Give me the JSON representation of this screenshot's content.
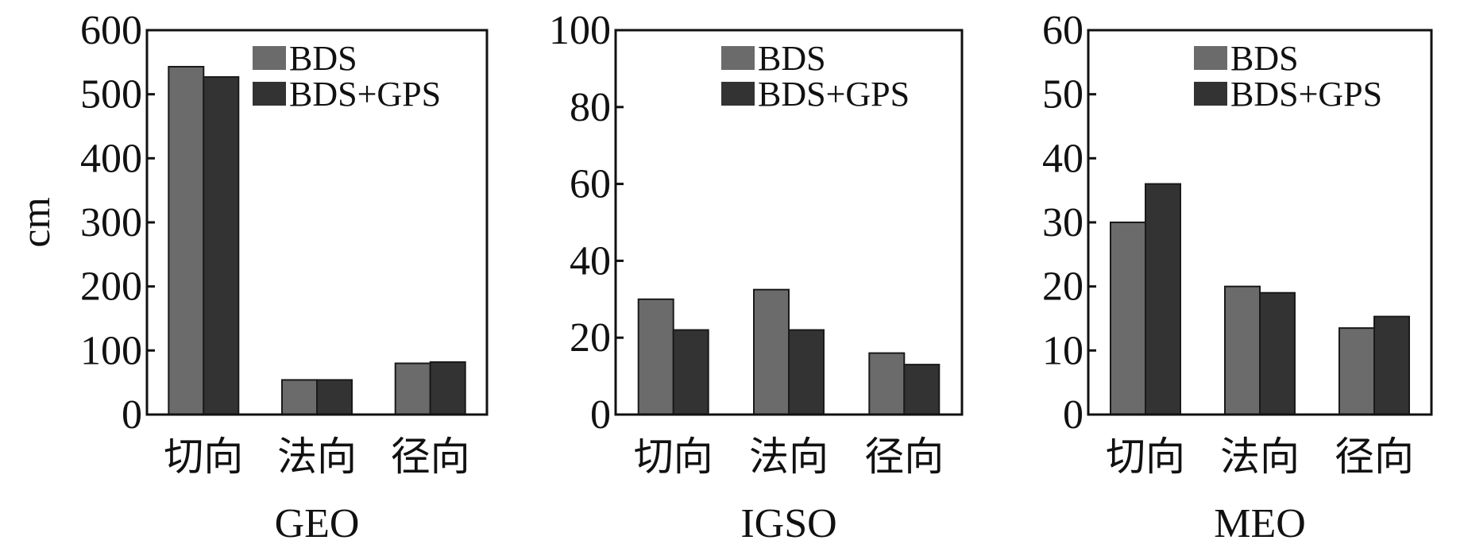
{
  "chart_data": [
    {
      "type": "bar",
      "title": "GEO",
      "ylabel": "cm",
      "categories": [
        "切向",
        "法向",
        "径向"
      ],
      "ylim": [
        0,
        600
      ],
      "yticks": [
        0,
        100,
        200,
        300,
        400,
        500,
        600
      ],
      "legend_position": "top-right",
      "grid": false,
      "series": [
        {
          "name": "BDS",
          "values": [
            543,
            54,
            80
          ],
          "color": "#6b6b6b"
        },
        {
          "name": "BDS+GPS",
          "values": [
            527,
            54,
            82
          ],
          "color": "#333333"
        }
      ]
    },
    {
      "type": "bar",
      "title": "IGSO",
      "ylabel": "",
      "categories": [
        "切向",
        "法向",
        "径向"
      ],
      "ylim": [
        0,
        100
      ],
      "yticks": [
        0,
        20,
        40,
        60,
        80,
        100
      ],
      "legend_position": "top-right",
      "grid": false,
      "series": [
        {
          "name": "BDS",
          "values": [
            30,
            32.5,
            16
          ],
          "color": "#6b6b6b"
        },
        {
          "name": "BDS+GPS",
          "values": [
            22,
            22,
            13
          ],
          "color": "#333333"
        }
      ]
    },
    {
      "type": "bar",
      "title": "MEO",
      "ylabel": "",
      "categories": [
        "切向",
        "法向",
        "径向"
      ],
      "ylim": [
        0,
        60
      ],
      "yticks": [
        0,
        10,
        20,
        30,
        40,
        50,
        60
      ],
      "legend_position": "top-right",
      "grid": false,
      "series": [
        {
          "name": "BDS",
          "values": [
            30,
            20,
            13.5
          ],
          "color": "#6b6b6b"
        },
        {
          "name": "BDS+GPS",
          "values": [
            36,
            19,
            15.3
          ],
          "color": "#333333"
        }
      ]
    }
  ]
}
